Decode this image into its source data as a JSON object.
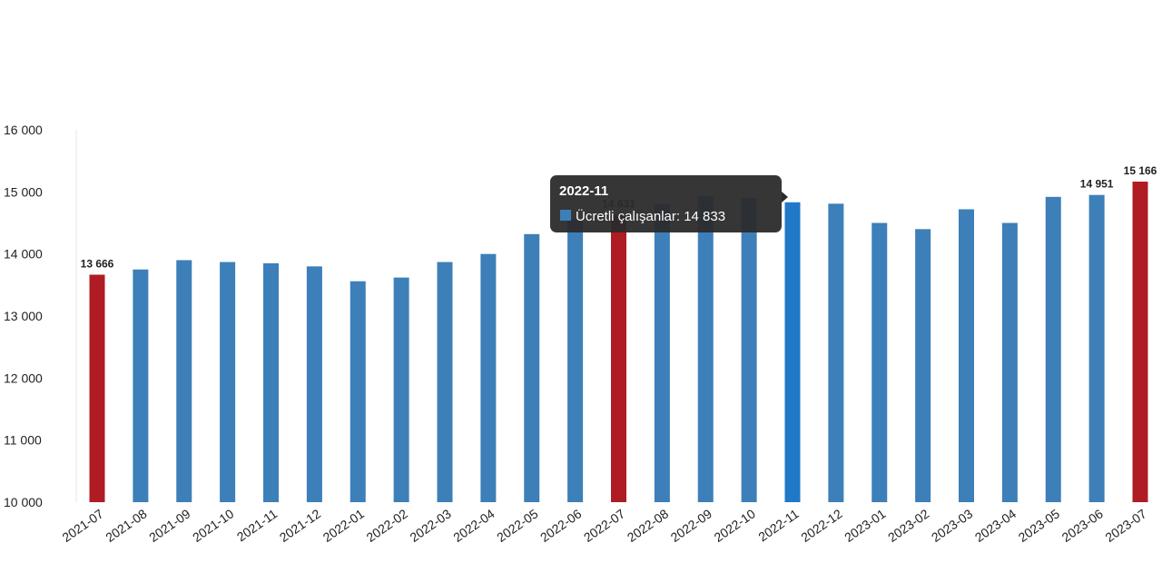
{
  "chart_data": {
    "type": "bar",
    "categories": [
      "2021-07",
      "2021-08",
      "2021-09",
      "2021-10",
      "2021-11",
      "2021-12",
      "2022-01",
      "2022-02",
      "2022-03",
      "2022-04",
      "2022-05",
      "2022-06",
      "2022-07",
      "2022-08",
      "2022-09",
      "2022-10",
      "2022-11",
      "2022-12",
      "2023-01",
      "2023-02",
      "2023-03",
      "2023-04",
      "2023-05",
      "2023-06",
      "2023-07"
    ],
    "series": [
      {
        "name": "Ücretli çalışanlar",
        "values": [
          13666,
          13750,
          13900,
          13870,
          13850,
          13800,
          13560,
          13620,
          13870,
          14000,
          14320,
          14560,
          14631,
          14800,
          14930,
          14900,
          14833,
          14810,
          14500,
          14400,
          14720,
          14500,
          14920,
          14951,
          15166
        ]
      }
    ],
    "highlight_indices": [
      0,
      12,
      24
    ],
    "data_labels": [
      {
        "index": 0,
        "text": "13 666"
      },
      {
        "index": 12,
        "text": "14 631"
      },
      {
        "index": 23,
        "text": "14 951"
      },
      {
        "index": 24,
        "text": "15 166"
      }
    ],
    "y_ticks": [
      10000,
      11000,
      12000,
      13000,
      14000,
      15000,
      16000
    ],
    "y_tick_labels": [
      "10 000",
      "11 000",
      "12 000",
      "13 000",
      "14 000",
      "15 000",
      "16 000"
    ],
    "ylim": [
      10000,
      16000
    ],
    "title": "",
    "xlabel": "",
    "ylabel": "",
    "grid": false,
    "colors": {
      "bar": "#3d7fb8",
      "highlight": "#b01c24",
      "hover": "#1f78c8",
      "tooltip_bg": "#2b2b2b"
    },
    "tooltip": {
      "index": 16,
      "title": "2022-11",
      "text": "Ücretli çalışanlar: 14 833"
    }
  }
}
